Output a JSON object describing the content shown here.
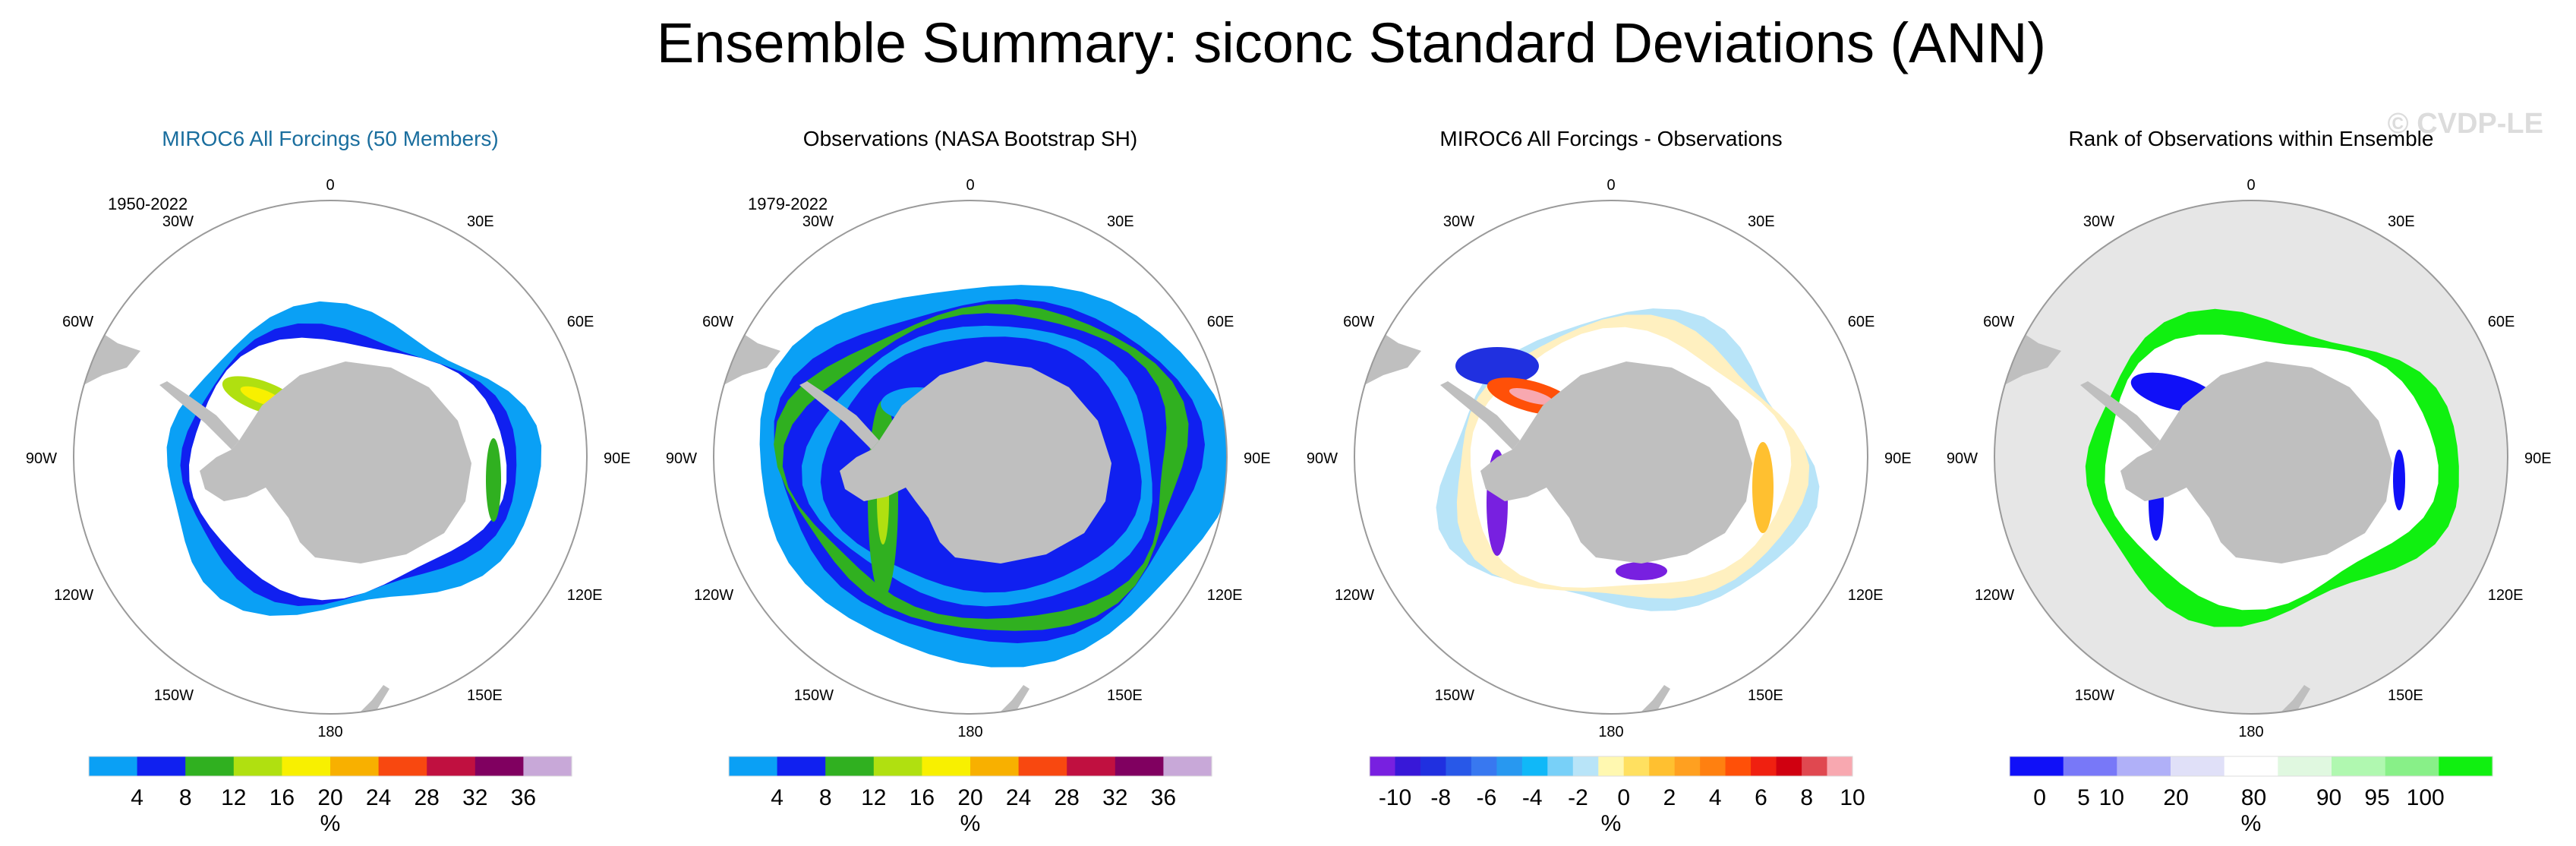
{
  "figure": {
    "title": "Ensemble Summary: siconc Standard Deviations (ANN)",
    "watermark": "© CVDP-LE",
    "title_color": "#000000",
    "panel1_title_color": "#1a6e9e",
    "land_color": "#bfbfbf",
    "ocean_rank_color": "#e6e6e6"
  },
  "chart_data": [
    {
      "type": "heatmap",
      "projection": "south-polar-stereographic",
      "title": "MIROC6 All Forcings (50 Members)",
      "period": "1950-2022",
      "lon_labels": [
        "0",
        "30E",
        "60E",
        "90E",
        "120E",
        "150E",
        "180",
        "150W",
        "120W",
        "90W",
        "60W",
        "30W"
      ],
      "colorbar": {
        "unit": "%",
        "tick_labels": [
          "4",
          "8",
          "12",
          "16",
          "20",
          "24",
          "28",
          "32",
          "36"
        ],
        "colors": [
          "#0aa0f5",
          "#1020f0",
          "#30b020",
          "#b0e010",
          "#f8f000",
          "#f8b000",
          "#f84810",
          "#c01040",
          "#800060",
          "#c8a8d8"
        ]
      }
    },
    {
      "type": "heatmap",
      "projection": "south-polar-stereographic",
      "title": "Observations (NASA Bootstrap SH)",
      "period": "1979-2022",
      "lon_labels": [
        "0",
        "30E",
        "60E",
        "90E",
        "120E",
        "150E",
        "180",
        "150W",
        "120W",
        "90W",
        "60W",
        "30W"
      ],
      "colorbar": {
        "unit": "%",
        "tick_labels": [
          "4",
          "8",
          "12",
          "16",
          "20",
          "24",
          "28",
          "32",
          "36"
        ],
        "colors": [
          "#0aa0f5",
          "#1020f0",
          "#30b020",
          "#b0e010",
          "#f8f000",
          "#f8b000",
          "#f84810",
          "#c01040",
          "#800060",
          "#c8a8d8"
        ]
      }
    },
    {
      "type": "heatmap",
      "projection": "south-polar-stereographic",
      "title": "MIROC6 All Forcings - Observations",
      "lon_labels": [
        "0",
        "30E",
        "60E",
        "90E",
        "120E",
        "150E",
        "180",
        "150W",
        "120W",
        "90W",
        "60W",
        "30W"
      ],
      "colorbar": {
        "unit": "%",
        "tick_labels": [
          "-10",
          "-8",
          "-6",
          "-4",
          "-2",
          "0",
          "2",
          "4",
          "6",
          "8",
          "10"
        ],
        "colors": [
          "#7820e0",
          "#3818d8",
          "#2030e0",
          "#2858e8",
          "#3878f0",
          "#2898f0",
          "#10b8f8",
          "#78d0f8",
          "#b8e4f8",
          "#fff8b0",
          "#ffe060",
          "#ffc030",
          "#ffa020",
          "#ff8010",
          "#ff5008",
          "#f02010",
          "#d00010",
          "#e04850",
          "#f8a8b0"
        ]
      }
    },
    {
      "type": "heatmap",
      "projection": "south-polar-stereographic",
      "title": "Rank of Observations within Ensemble",
      "lon_labels": [
        "0",
        "30E",
        "60E",
        "90E",
        "120E",
        "150E",
        "180",
        "150W",
        "120W",
        "90W",
        "60W",
        "30W"
      ],
      "colorbar": {
        "unit": "%",
        "tick_labels": [
          "0",
          "5",
          "10",
          "20",
          "80",
          "90",
          "95",
          "100"
        ],
        "colors": [
          "#1010f8",
          "#7878f8",
          "#b0b0f8",
          "#e0e0f8",
          "#ffffff",
          "#e0f8e0",
          "#b0f8b0",
          "#88f088",
          "#10f010"
        ]
      }
    }
  ]
}
